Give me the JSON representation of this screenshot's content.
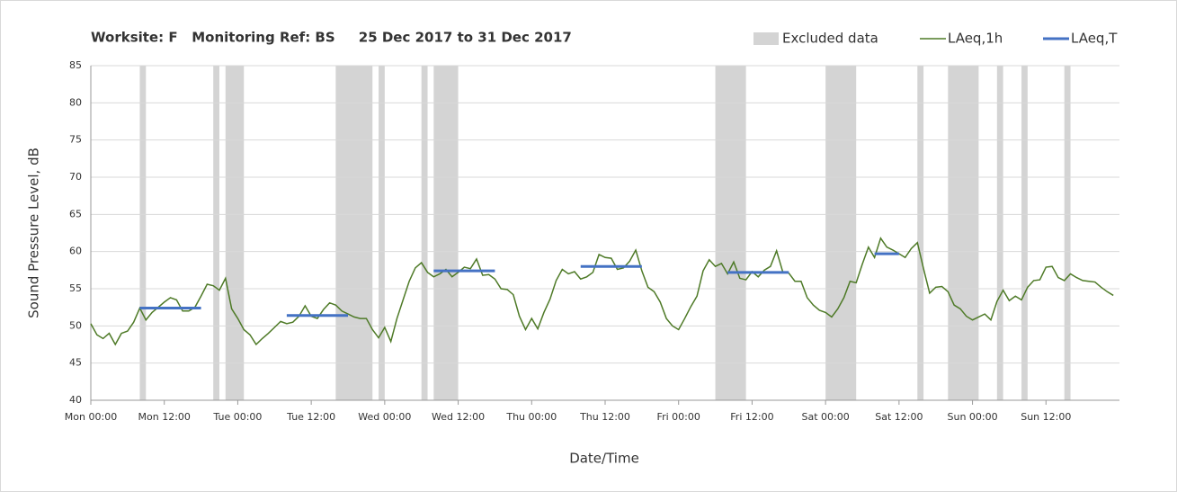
{
  "chart_data": {
    "type": "line",
    "title": "Worksite: F   Monitoring Ref: BS     25 Dec 2017 to 31 Dec 2017",
    "x_label": "Date/Time",
    "y_label": "Sound Pressure Level, dB",
    "xlim": [
      0,
      168
    ],
    "xticks": [
      {
        "value": 0,
        "label": "Mon 00:00"
      },
      {
        "value": 12,
        "label": "Mon 12:00"
      },
      {
        "value": 24,
        "label": "Tue 00:00"
      },
      {
        "value": 36,
        "label": "Tue 12:00"
      },
      {
        "value": 48,
        "label": "Wed 00:00"
      },
      {
        "value": 60,
        "label": "Wed 12:00"
      },
      {
        "value": 72,
        "label": "Thu 00:00"
      },
      {
        "value": 84,
        "label": "Thu 12:00"
      },
      {
        "value": 96,
        "label": "Fri 00:00"
      },
      {
        "value": 108,
        "label": "Fri 12:00"
      },
      {
        "value": 120,
        "label": "Sat 00:00"
      },
      {
        "value": 132,
        "label": "Sat 12:00"
      },
      {
        "value": 144,
        "label": "Sun 00:00"
      },
      {
        "value": 156,
        "label": "Sun 12:00"
      }
    ],
    "ylim": [
      40,
      85
    ],
    "yticks": [
      40,
      45,
      50,
      55,
      60,
      65,
      70,
      75,
      80,
      85
    ],
    "grid": true,
    "legend": "top-right",
    "x": [
      0,
      1,
      2,
      3,
      4,
      5,
      6,
      7,
      8,
      9,
      10,
      11,
      12,
      13,
      14,
      15,
      16,
      17,
      18,
      19,
      20,
      21,
      22,
      23,
      24,
      25,
      26,
      27,
      28,
      29,
      30,
      31,
      32,
      33,
      34,
      35,
      36,
      37,
      38,
      39,
      40,
      41,
      42,
      43,
      44,
      45,
      46,
      47,
      48,
      49,
      50,
      51,
      52,
      53,
      54,
      55,
      56,
      57,
      58,
      59,
      60,
      61,
      62,
      63,
      64,
      65,
      66,
      67,
      68,
      69,
      70,
      71,
      72,
      73,
      74,
      75,
      76,
      77,
      78,
      79,
      80,
      81,
      82,
      83,
      84,
      85,
      86,
      87,
      88,
      89,
      90,
      91,
      92,
      93,
      94,
      95,
      96,
      97,
      98,
      99,
      100,
      101,
      102,
      103,
      104,
      105,
      106,
      107,
      108,
      109,
      110,
      111,
      112,
      113,
      114,
      115,
      116,
      117,
      118,
      119,
      120,
      121,
      122,
      123,
      124,
      125,
      126,
      127,
      128,
      129,
      130,
      131,
      132,
      133,
      134,
      135,
      136,
      137,
      138,
      139,
      140,
      141,
      142,
      143,
      144,
      145,
      146,
      147,
      148,
      149,
      150,
      151,
      152,
      153,
      154,
      155,
      156,
      157,
      158,
      159,
      160,
      161,
      162,
      163,
      164,
      165,
      166,
      167
    ],
    "series": [
      {
        "name": "LAeq,1h",
        "color": "#4e7a27",
        "values": [
          50.3,
          48.8,
          48.3,
          49,
          47.5,
          49,
          49.3,
          50.5,
          52.4,
          50.8,
          51.8,
          52.5,
          53.2,
          53.8,
          53.5,
          52,
          52,
          52.5,
          54,
          55.6,
          55.4,
          54.8,
          56.4,
          52.3,
          51,
          49.5,
          48.8,
          47.5,
          48.3,
          49,
          49.8,
          50.6,
          50.3,
          50.5,
          51.3,
          52.7,
          51.3,
          51,
          52.2,
          53.1,
          52.8,
          52,
          51.6,
          51.2,
          51,
          51,
          49.5,
          48.4,
          49.8,
          47.9,
          51,
          53.5,
          56,
          57.8,
          58.5,
          57.2,
          56.6,
          57,
          57.6,
          56.6,
          57.2,
          57.9,
          57.7,
          59,
          56.8,
          56.9,
          56.3,
          55,
          54.9,
          54.2,
          51.3,
          49.5,
          51,
          49.6,
          51.8,
          53.6,
          56.1,
          57.6,
          57,
          57.3,
          56.3,
          56.6,
          57.2,
          59.6,
          59.2,
          59.1,
          57.6,
          57.8,
          58.7,
          60.2,
          57.4,
          55.2,
          54.6,
          53.2,
          51,
          50,
          49.5,
          51,
          52.6,
          54,
          57.4,
          58.9,
          58,
          58.4,
          57,
          58.6,
          56.4,
          56.2,
          57.3,
          56.6,
          57.5,
          58,
          60.1,
          57.3,
          57.1,
          56,
          56,
          53.8,
          52.8,
          52.1,
          51.8,
          51.2,
          52.3,
          53.8,
          56,
          55.8,
          58.3,
          60.6,
          59.2,
          61.8,
          60.6,
          60.2,
          59.7,
          59.2,
          60.4,
          61.2,
          57.7,
          54.4,
          55.2,
          55.3,
          54.6,
          52.8,
          52.3,
          51.3,
          50.8,
          51.2,
          51.6,
          50.8,
          53.3,
          54.8,
          53.4,
          54,
          53.5,
          55.2,
          56.1,
          56.2,
          57.9,
          58,
          56.5,
          56.1,
          57,
          56.5,
          56.1,
          56,
          55.9,
          55.2,
          54.6,
          54.1
        ]
      }
    ],
    "excluded": {
      "name": "Excluded data",
      "color": "#d4d4d4",
      "ranges": [
        [
          8,
          9
        ],
        [
          20,
          21
        ],
        [
          22,
          25
        ],
        [
          40,
          46
        ],
        [
          47,
          48
        ],
        [
          54,
          55
        ],
        [
          56,
          60
        ],
        [
          102,
          107
        ],
        [
          120,
          125
        ],
        [
          135,
          136
        ],
        [
          140,
          145
        ],
        [
          148,
          149
        ],
        [
          152,
          153
        ],
        [
          159,
          160
        ]
      ]
    },
    "average": {
      "name": "LAeq,T",
      "color": "#4472c4",
      "segments": [
        {
          "start": 8,
          "end": 18,
          "value": 52.4
        },
        {
          "start": 32,
          "end": 42,
          "value": 51.4
        },
        {
          "start": 56,
          "end": 66,
          "value": 57.4
        },
        {
          "start": 80,
          "end": 90,
          "value": 58
        },
        {
          "start": 104,
          "end": 114,
          "value": 57.2
        },
        {
          "start": 128,
          "end": 132,
          "value": 59.7
        }
      ]
    }
  }
}
